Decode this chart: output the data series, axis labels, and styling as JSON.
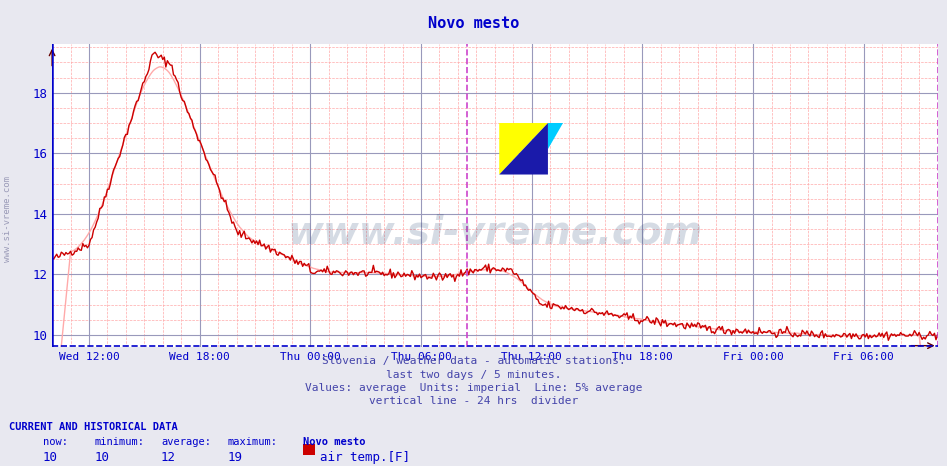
{
  "title": "Novo mesto",
  "title_color": "#0000cc",
  "bg_color": "#e8e8f0",
  "plot_bg_color": "#ffffff",
  "line_color": "#cc0000",
  "avg_line_color": "#ffaaaa",
  "grid_color_major": "#9999bb",
  "grid_color_minor": "#ffaaaa",
  "vline_color": "#cc44cc",
  "border_color": "#0000cc",
  "ylabel_values": [
    10,
    12,
    14,
    16,
    18
  ],
  "ylim": [
    9.6,
    19.6
  ],
  "xlabel_labels": [
    "Wed 12:00",
    "Wed 18:00",
    "Thu 00:00",
    "Thu 06:00",
    "Thu 12:00",
    "Thu 18:00",
    "Fri 00:00",
    "Fri 06:00"
  ],
  "footnote1": "Slovenia / weather data - automatic stations.",
  "footnote2": "last two days / 5 minutes.",
  "footnote3": "Values: average  Units: imperial  Line: 5% average",
  "footnote4": "vertical line - 24 hrs  divider",
  "footnote_color": "#4444aa",
  "current_label": "CURRENT AND HISTORICAL DATA",
  "now_val": "10",
  "min_val": "10",
  "avg_val": "12",
  "max_val": "19",
  "station": "Novo mesto",
  "series_label": "air temp.[F]",
  "legend_color": "#cc0000",
  "watermark_text": "www.si-vreme.com",
  "watermark_color": "#1a3a6a",
  "watermark_alpha": 0.18,
  "left_label": "www.si-vreme.com",
  "left_label_color": "#8888aa"
}
